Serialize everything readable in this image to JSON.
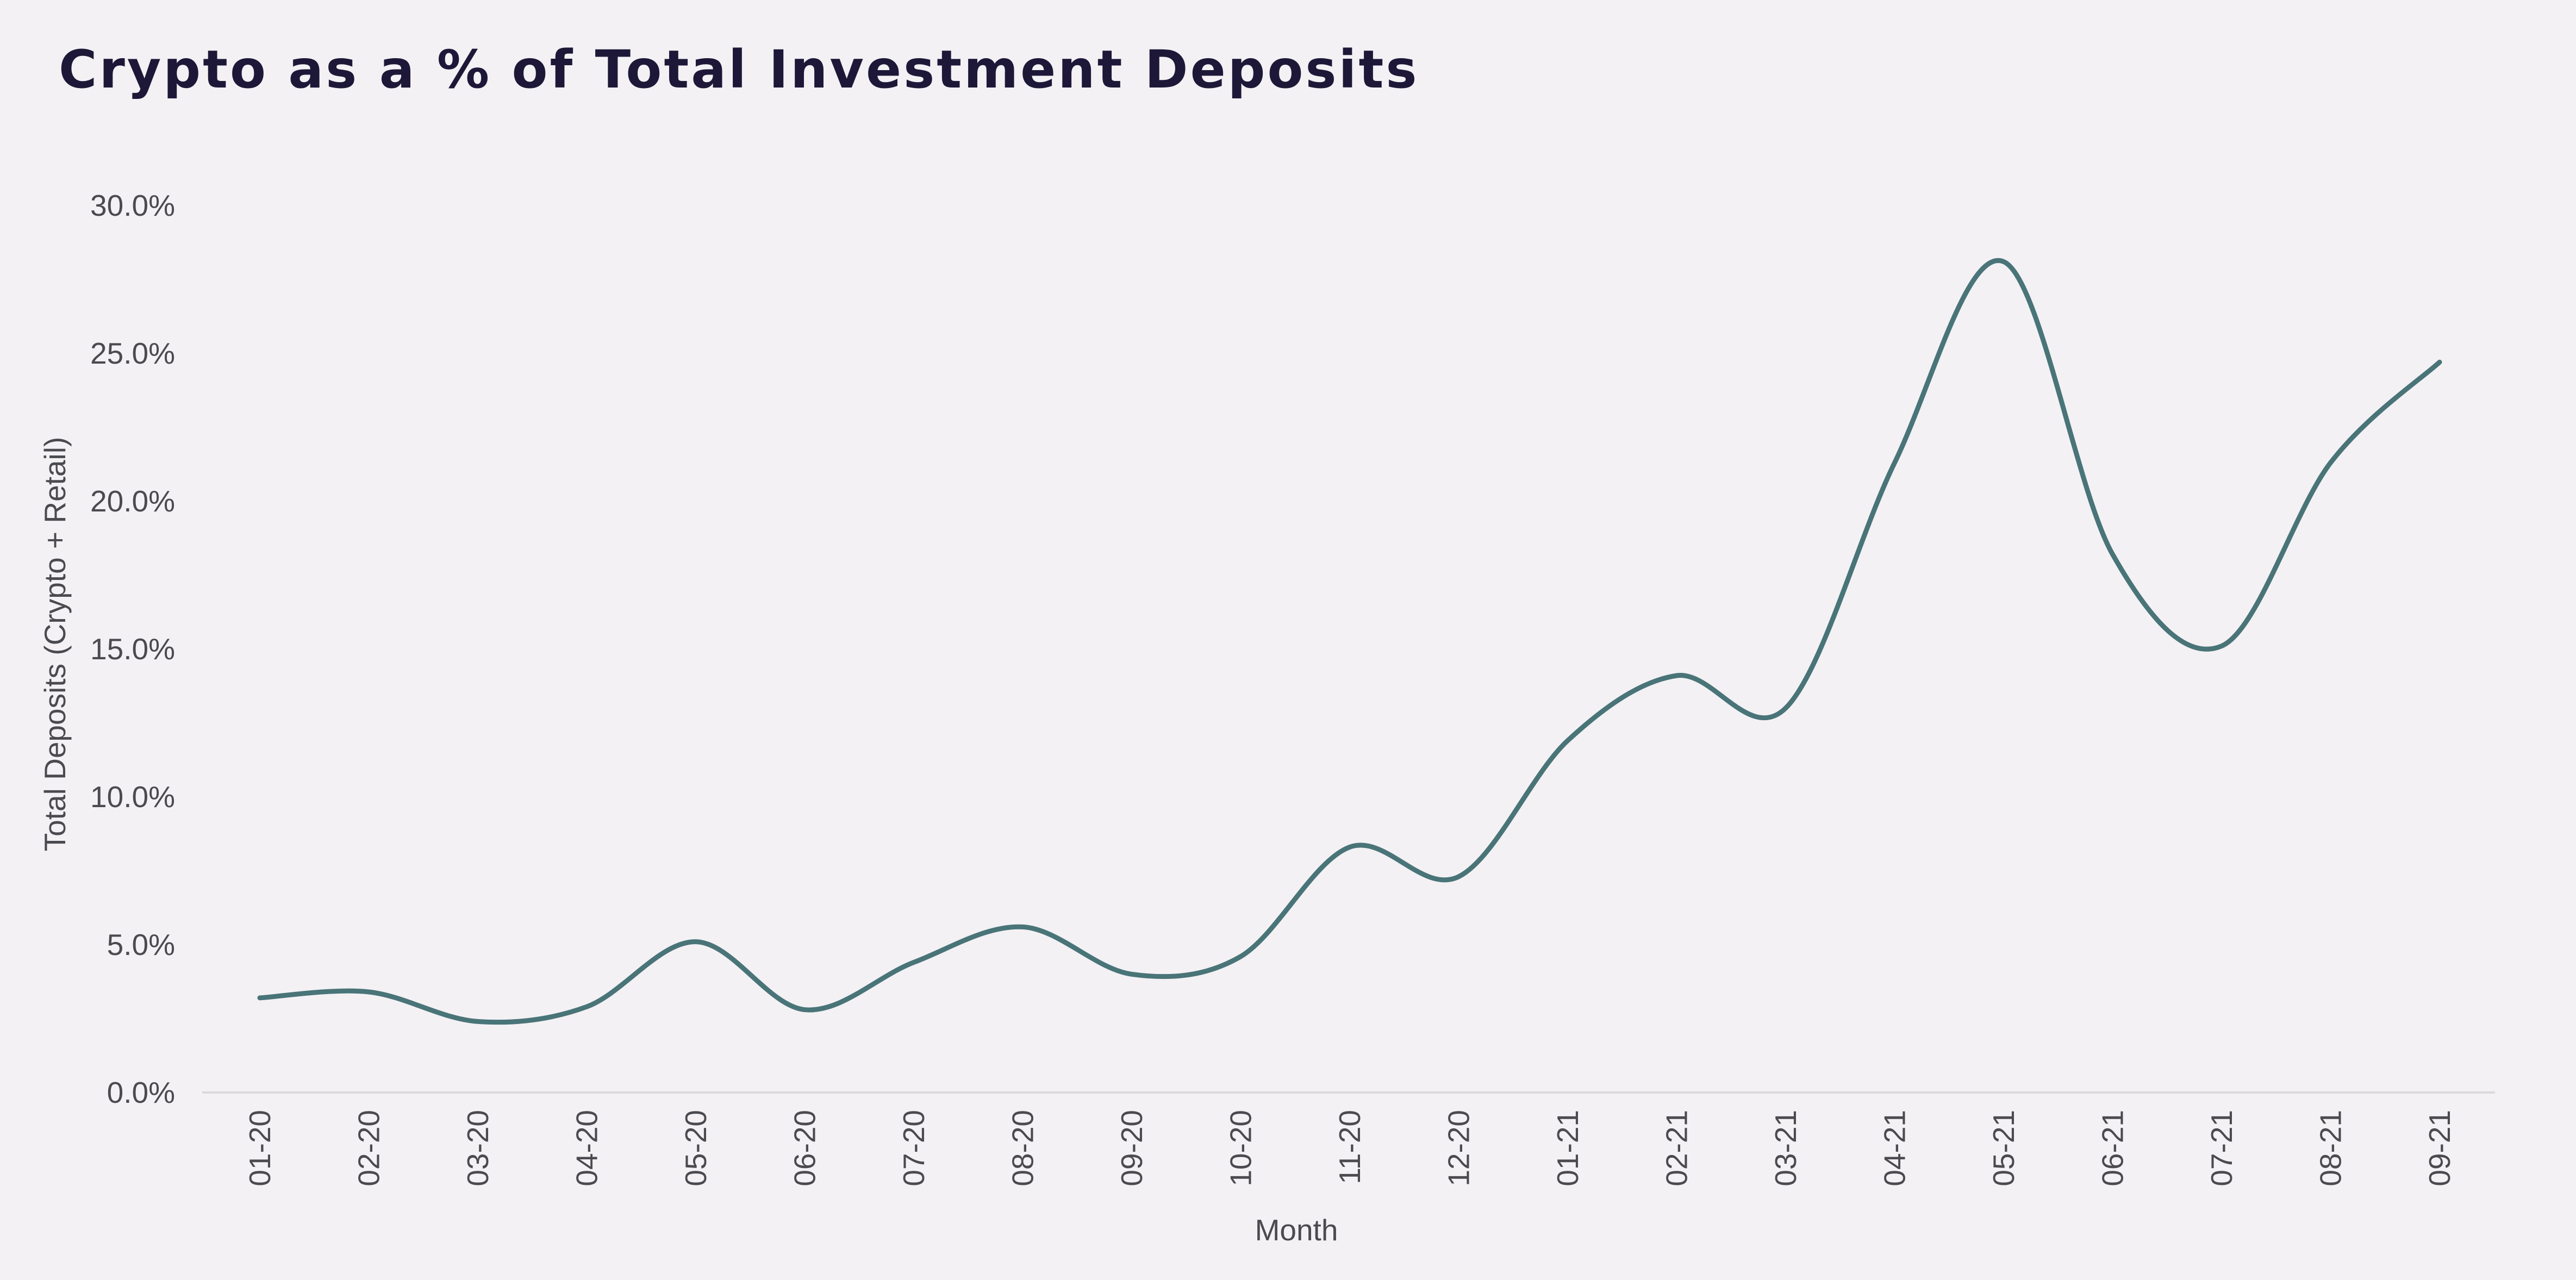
{
  "chart_data": {
    "type": "line",
    "title": "Crypto as a % of Total Investment Deposits",
    "xlabel": "Month",
    "ylabel": "Total Deposits (Crypto + Retail)",
    "categories": [
      "01-20",
      "02-20",
      "03-20",
      "04-20",
      "05-20",
      "06-20",
      "07-20",
      "08-20",
      "09-20",
      "10-20",
      "11-20",
      "12-20",
      "01-21",
      "02-21",
      "03-21",
      "04-21",
      "05-21",
      "06-21",
      "07-21",
      "08-21",
      "09-21"
    ],
    "series": [
      {
        "values": [
          3.2,
          3.4,
          2.4,
          2.9,
          5.1,
          2.8,
          4.4,
          5.6,
          4.0,
          4.6,
          8.3,
          7.3,
          11.9,
          14.1,
          13.0,
          21.3,
          28.1,
          18.2,
          15.1,
          21.3,
          24.7
        ]
      }
    ],
    "ylim": [
      0,
      30
    ],
    "yticks": [
      0,
      5,
      10,
      15,
      20,
      25,
      30
    ],
    "ytick_labels": [
      "0.0%",
      "5.0%",
      "10.0%",
      "15.0%",
      "20.0%",
      "25.0%",
      "30.0%"
    ],
    "grid": false,
    "legend": "none",
    "colors": {
      "line": "#497478",
      "title": "#1d1838",
      "axis": "#dcd9dd",
      "text": "#4a4a4f",
      "background": "#f3f1f4"
    }
  }
}
